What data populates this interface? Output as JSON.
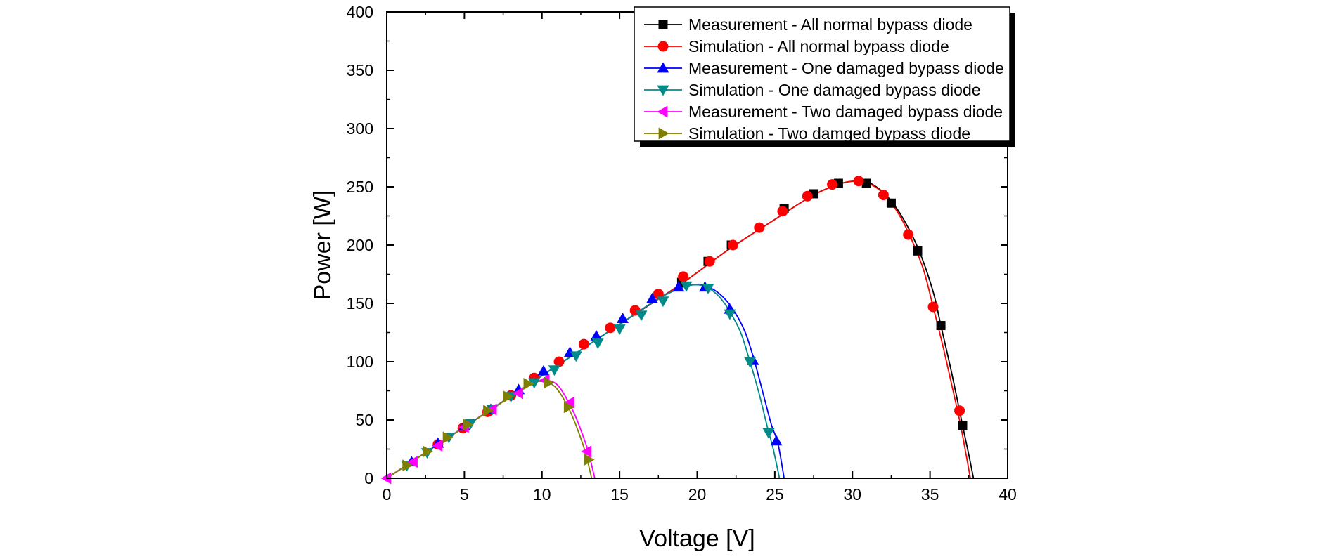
{
  "chart_data": {
    "type": "line",
    "title": "",
    "xlabel": "Voltage [V]",
    "ylabel": "Power [W]",
    "xlim": [
      0,
      40
    ],
    "ylim": [
      0,
      400
    ],
    "xticks": [
      "0",
      "5",
      "10",
      "15",
      "20",
      "25",
      "30",
      "35",
      "40"
    ],
    "yticks": [
      "0",
      "50",
      "100",
      "150",
      "200",
      "250",
      "300",
      "350",
      "400"
    ],
    "grid": false,
    "legend_position": "top-right",
    "series": [
      {
        "name": "Measurement - All normal bypass diode",
        "color": "#000000",
        "marker": "square",
        "curve": [
          [
            0,
            0
          ],
          [
            5,
            44
          ],
          [
            10,
            88
          ],
          [
            15,
            132
          ],
          [
            19,
            167
          ],
          [
            22,
            196
          ],
          [
            25,
            222
          ],
          [
            27.5,
            243
          ],
          [
            29.3,
            253
          ],
          [
            30.5,
            255
          ],
          [
            31.3,
            252
          ],
          [
            32.3,
            241
          ],
          [
            33.3,
            222
          ],
          [
            34.3,
            195
          ],
          [
            35.2,
            160
          ],
          [
            35.7,
            131
          ],
          [
            36.4,
            90
          ],
          [
            37.1,
            45
          ],
          [
            37.5,
            20
          ],
          [
            37.8,
            0
          ]
        ],
        "markers": [
          [
            19,
            168
          ],
          [
            20.7,
            186
          ],
          [
            22.2,
            200
          ],
          [
            25.6,
            231
          ],
          [
            27.5,
            244
          ],
          [
            29.1,
            253
          ],
          [
            30.9,
            253
          ],
          [
            32.5,
            236
          ],
          [
            34.2,
            195
          ],
          [
            35.7,
            131
          ],
          [
            37.1,
            45
          ]
        ]
      },
      {
        "name": "Simulation - All normal bypass diode",
        "color": "#ff0000",
        "marker": "circle",
        "curve": [
          [
            0,
            0
          ],
          [
            5,
            44
          ],
          [
            10,
            88
          ],
          [
            15,
            132
          ],
          [
            19,
            167
          ],
          [
            22,
            196
          ],
          [
            25,
            222
          ],
          [
            27.5,
            243
          ],
          [
            29.3,
            253
          ],
          [
            30.4,
            255
          ],
          [
            31.2,
            252
          ],
          [
            32.1,
            243
          ],
          [
            33.1,
            224
          ],
          [
            33.9,
            202
          ],
          [
            34.6,
            178
          ],
          [
            35.2,
            147
          ],
          [
            35.8,
            115
          ],
          [
            36.4,
            80
          ],
          [
            36.9,
            50
          ],
          [
            37.3,
            22
          ],
          [
            37.6,
            0
          ]
        ],
        "markers": [
          [
            3.3,
            29
          ],
          [
            4.9,
            43
          ],
          [
            6.5,
            57
          ],
          [
            8.0,
            71
          ],
          [
            9.5,
            86
          ],
          [
            11.1,
            100
          ],
          [
            12.7,
            115
          ],
          [
            14.4,
            129
          ],
          [
            16.0,
            144
          ],
          [
            17.5,
            158
          ],
          [
            19.1,
            173
          ],
          [
            20.8,
            186
          ],
          [
            22.3,
            200
          ],
          [
            24.0,
            215
          ],
          [
            25.5,
            229
          ],
          [
            27.1,
            242
          ],
          [
            28.7,
            252
          ],
          [
            30.4,
            255
          ],
          [
            32.0,
            243
          ],
          [
            33.6,
            209
          ],
          [
            35.2,
            147
          ],
          [
            36.9,
            58
          ]
        ]
      },
      {
        "name": "Measurement - One damaged bypass diode",
        "color": "#0000ff",
        "marker": "triangle-up",
        "curve": [
          [
            0,
            0
          ],
          [
            5,
            44
          ],
          [
            10,
            88
          ],
          [
            15,
            132
          ],
          [
            17.5,
            154
          ],
          [
            19.1,
            164
          ],
          [
            20.1,
            166
          ],
          [
            20.9,
            163
          ],
          [
            21.7,
            155
          ],
          [
            22.4,
            143
          ],
          [
            23.1,
            125
          ],
          [
            23.7,
            100
          ],
          [
            24.3,
            70
          ],
          [
            24.8,
            45
          ],
          [
            25.2,
            30
          ],
          [
            25.6,
            0
          ]
        ],
        "markers": [
          [
            1.6,
            14
          ],
          [
            3.3,
            30
          ],
          [
            5.0,
            45
          ],
          [
            6.7,
            59
          ],
          [
            8.5,
            76
          ],
          [
            10.1,
            92
          ],
          [
            11.8,
            108
          ],
          [
            13.5,
            122
          ],
          [
            15.2,
            137
          ],
          [
            17.1,
            154
          ],
          [
            18.8,
            164
          ],
          [
            20.5,
            164
          ],
          [
            22.1,
            145
          ],
          [
            23.6,
            101
          ],
          [
            25.1,
            32
          ]
        ]
      },
      {
        "name": "Simulation - One damaged bypass diode",
        "color": "#008b8b",
        "marker": "triangle-down",
        "curve": [
          [
            0,
            0
          ],
          [
            5,
            44
          ],
          [
            10,
            88
          ],
          [
            15,
            132
          ],
          [
            17.5,
            154
          ],
          [
            18.9,
            163
          ],
          [
            19.8,
            166
          ],
          [
            20.6,
            164
          ],
          [
            21.4,
            156
          ],
          [
            22.1,
            143
          ],
          [
            22.8,
            125
          ],
          [
            23.4,
            100
          ],
          [
            24.0,
            72
          ],
          [
            24.5,
            45
          ],
          [
            24.9,
            25
          ],
          [
            25.3,
            0
          ]
        ],
        "markers": [
          [
            1.3,
            11
          ],
          [
            2.6,
            22
          ],
          [
            4.0,
            35
          ],
          [
            5.4,
            47
          ],
          [
            6.8,
            59
          ],
          [
            8.0,
            70
          ],
          [
            9.5,
            82
          ],
          [
            10.8,
            93
          ],
          [
            12.2,
            105
          ],
          [
            13.6,
            116
          ],
          [
            15.0,
            128
          ],
          [
            16.4,
            140
          ],
          [
            17.8,
            152
          ],
          [
            19.3,
            165
          ],
          [
            20.7,
            163
          ],
          [
            22.1,
            141
          ],
          [
            23.4,
            100
          ],
          [
            24.6,
            39
          ]
        ]
      },
      {
        "name": "Measurement - Two damaged bypass diode",
        "color": "#ff00ff",
        "marker": "triangle-left",
        "curve": [
          [
            0,
            0
          ],
          [
            5,
            44
          ],
          [
            8,
            70
          ],
          [
            9.5,
            82
          ],
          [
            10.3,
            84
          ],
          [
            11.0,
            80
          ],
          [
            11.6,
            68
          ],
          [
            12.1,
            55
          ],
          [
            12.6,
            38
          ],
          [
            13.0,
            22
          ],
          [
            13.4,
            0
          ]
        ],
        "markers": [
          [
            0,
            0
          ],
          [
            1.7,
            14
          ],
          [
            3.3,
            28
          ],
          [
            5.0,
            44
          ],
          [
            6.8,
            59
          ],
          [
            8.5,
            73
          ],
          [
            10.2,
            84
          ],
          [
            11.8,
            65
          ],
          [
            12.9,
            23
          ]
        ]
      },
      {
        "name": "Simulation - Two damged bypass diode",
        "color": "#808000",
        "marker": "triangle-right",
        "curve": [
          [
            0,
            0
          ],
          [
            5,
            44
          ],
          [
            8,
            70
          ],
          [
            9.3,
            81
          ],
          [
            10.1,
            83
          ],
          [
            10.8,
            79
          ],
          [
            11.4,
            68
          ],
          [
            11.9,
            55
          ],
          [
            12.4,
            38
          ],
          [
            12.8,
            22
          ],
          [
            13.2,
            0
          ]
        ],
        "markers": [
          [
            1.3,
            11
          ],
          [
            2.6,
            23
          ],
          [
            3.9,
            35
          ],
          [
            5.2,
            46
          ],
          [
            6.5,
            58
          ],
          [
            7.8,
            70
          ],
          [
            9.1,
            81
          ],
          [
            10.4,
            82
          ],
          [
            11.7,
            61
          ],
          [
            13.0,
            16
          ]
        ]
      }
    ]
  }
}
